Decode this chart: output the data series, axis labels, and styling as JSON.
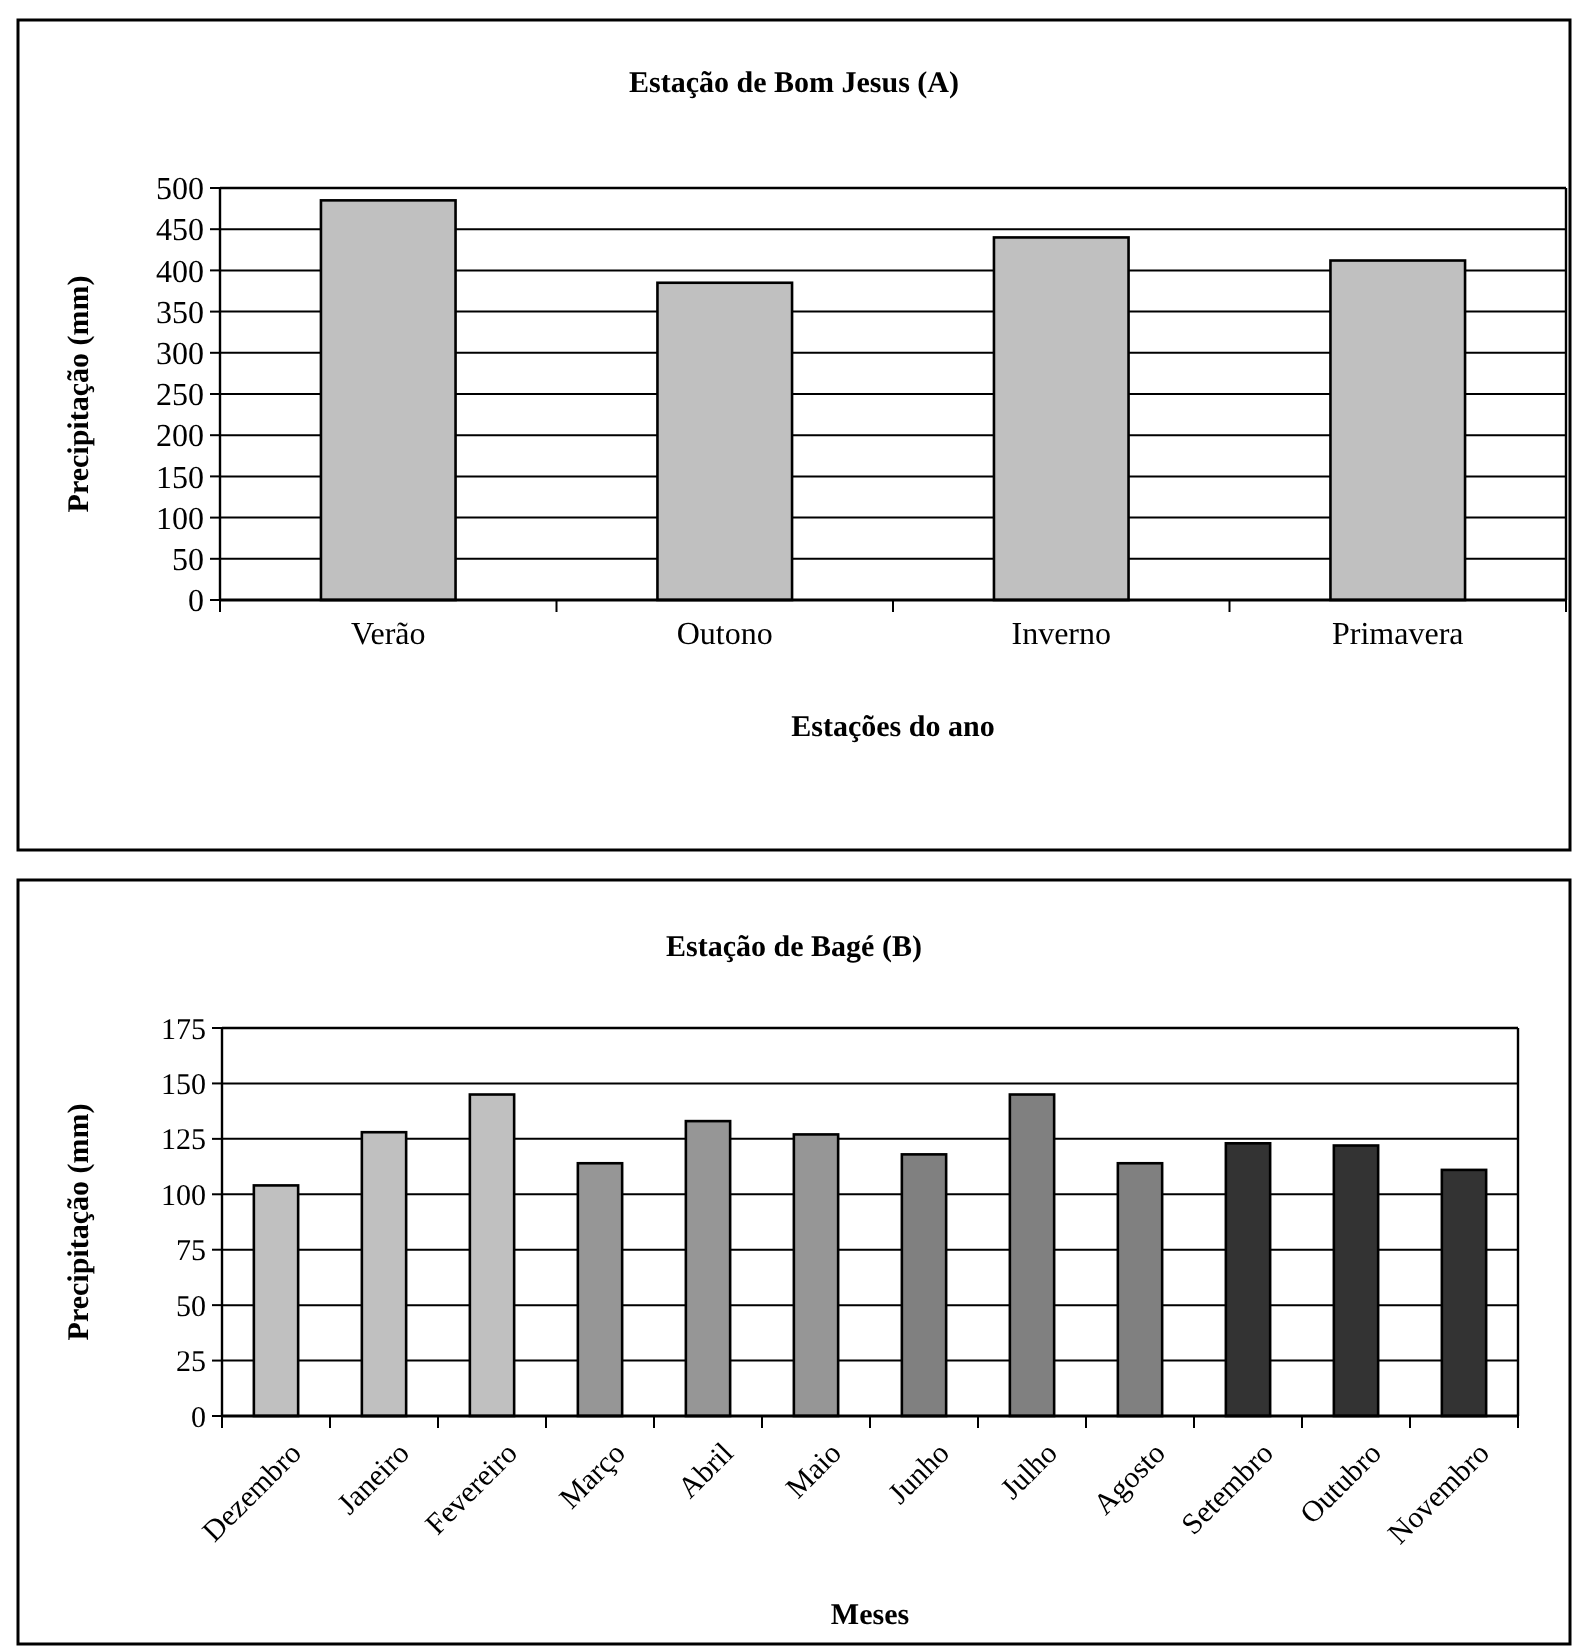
{
  "chart_data": [
    {
      "type": "bar",
      "title": "Estação de Bom Jesus (A)",
      "xlabel": "Estações do ano",
      "ylabel": "Precipitação (mm)",
      "categories": [
        "Verão",
        "Outono",
        "Inverno",
        "Primavera"
      ],
      "values": [
        485,
        385,
        440,
        412
      ],
      "color": "#c0c0c0",
      "ylim": [
        0,
        500
      ],
      "yticks": [
        0,
        50,
        100,
        150,
        200,
        250,
        300,
        350,
        400,
        450,
        500
      ],
      "grid": "y"
    },
    {
      "type": "bar",
      "title": "Estação de Bagé (B)",
      "xlabel": "Meses",
      "ylabel": "Precipitação (mm)",
      "categories": [
        "Dezembro",
        "Janeiro",
        "Fevereiro",
        "Março",
        "Abril",
        "Maio",
        "Junho",
        "Julho",
        "Agosto",
        "Setembro",
        "Outubro",
        "Novembro"
      ],
      "values": [
        104,
        128,
        145,
        114,
        133,
        127,
        118,
        145,
        114,
        123,
        122,
        111
      ],
      "colors": [
        "#c0c0c0",
        "#c0c0c0",
        "#c0c0c0",
        "#969696",
        "#969696",
        "#969696",
        "#808080",
        "#808080",
        "#808080",
        "#333333",
        "#333333",
        "#333333"
      ],
      "ylim": [
        0,
        175
      ],
      "yticks": [
        0,
        25,
        50,
        75,
        100,
        125,
        150,
        175
      ],
      "grid": "y"
    }
  ]
}
